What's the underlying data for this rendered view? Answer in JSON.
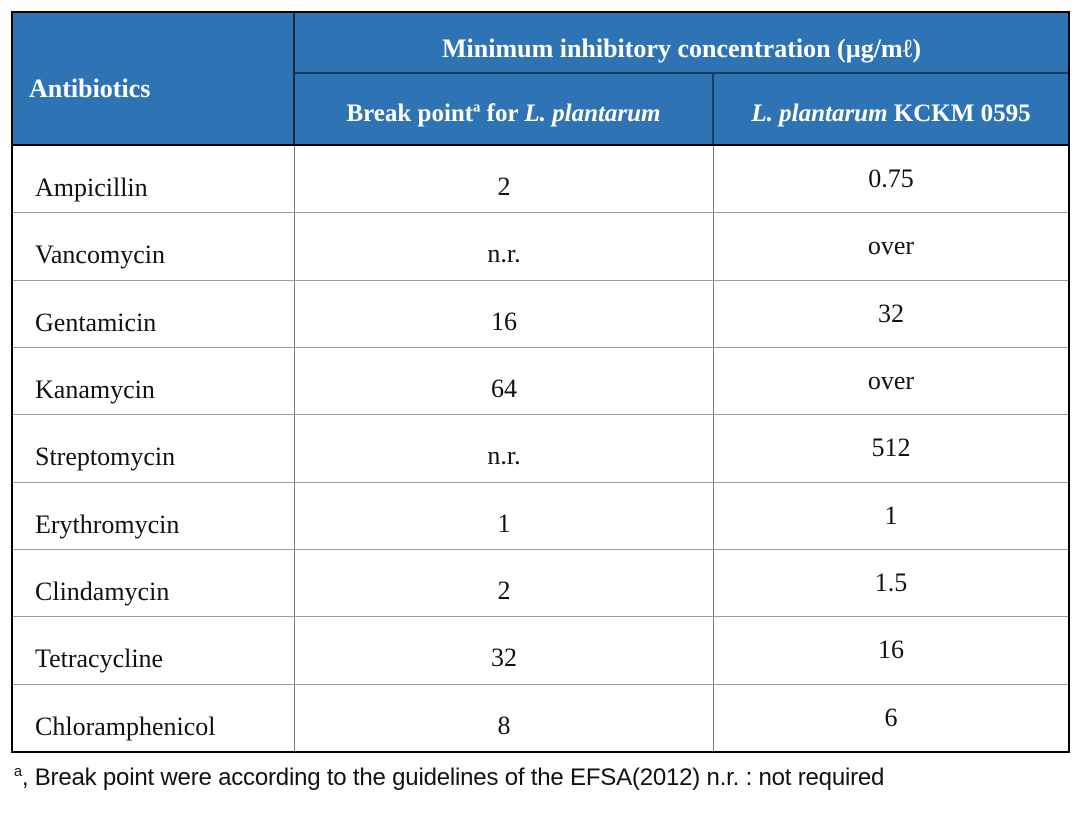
{
  "colors": {
    "header_blue": "#2E74B5",
    "header_text": "#FFFFFF",
    "body_text": "#111111",
    "outer_border": "#000000",
    "row_line": "#9C9C9C",
    "column_line": "#7A7A7A",
    "header_divider": "#1E3A5F"
  },
  "table": {
    "antibiotics_header": "Antibiotics",
    "mic_header": "Minimum inhibitory concentration (µg/mℓ)",
    "break_point_header": {
      "prefix": "Break point",
      "sup": "a",
      "mid": " for ",
      "species": "L. plantarum"
    },
    "strain_header": {
      "species": "L. plantarum",
      "rest": " KCKM 0595"
    },
    "rows": [
      {
        "antibiotic": "Ampicillin",
        "break_point": "2",
        "mic": "0.75"
      },
      {
        "antibiotic": "Vancomycin",
        "break_point": "n.r.",
        "mic": "over"
      },
      {
        "antibiotic": "Gentamicin",
        "break_point": "16",
        "mic": "32"
      },
      {
        "antibiotic": "Kanamycin",
        "break_point": "64",
        "mic": "over"
      },
      {
        "antibiotic": "Streptomycin",
        "break_point": "n.r.",
        "mic": "512"
      },
      {
        "antibiotic": "Erythromycin",
        "break_point": "1",
        "mic": "1"
      },
      {
        "antibiotic": "Clindamycin",
        "break_point": "2",
        "mic": "1.5"
      },
      {
        "antibiotic": "Tetracycline",
        "break_point": "32",
        "mic": "16"
      },
      {
        "antibiotic": "Chloramphenicol",
        "break_point": "8",
        "mic": "6"
      }
    ]
  },
  "footnote": {
    "sup": "a",
    "text": ", Break point were according to the guidelines of the EFSA(2012) n.r. : not required"
  }
}
